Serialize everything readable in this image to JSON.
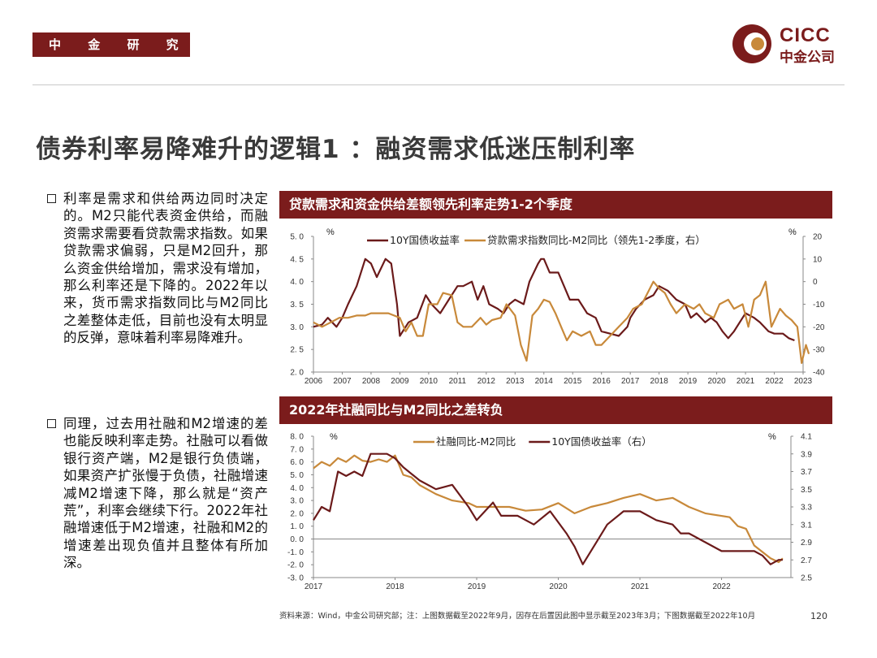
{
  "header": {
    "department": "中 金 研 究 部",
    "logo_en": "CICC",
    "logo_cn": "中金公司"
  },
  "title": "债券利率易降难升的逻辑1 ：融资需求低迷压制利率",
  "bullets": [
    "利率是需求和供给两边同时决定的。M2只能代表资金供给，而融资需求需要看贷款需求指数。如果贷款需求偏弱，只是M2回升，那么资金供给增加，需求没有增加，那么利率还是下降的。2022年以来，货币需求指数同比与M2同比之差整体走低，目前也没有太明显的反弹，意味着利率易降难升。",
    "同理，过去用社融和M2增速的差也能反映利率走势。社融可以看做银行资产端，M2是银行负债端，如果资产扩张慢于负债，社融增速减M2增速下降，那么就是“资产荒”，利率会继续下行。2022年社融增速低于M2增速，社融和M2的增速差出现负值并且整体有所加深。"
  ],
  "colors": {
    "brand": "#7b1c1c",
    "gold": "#c8893a",
    "grid": "#999999"
  },
  "panels": [
    {
      "heading": "贷款需求和资金供给差额领先利率走势1-2个季度"
    },
    {
      "heading": "2022年社融同比与M2同比之差转负"
    }
  ],
  "chart_data": [
    {
      "type": "line",
      "title": "贷款需求和资金供给差额领先利率走势1-2个季度",
      "left_unit": "%",
      "right_unit": "%",
      "left_axis": {
        "ylim": [
          2.0,
          5.0
        ],
        "ticks": [
          "2.0",
          "2.5",
          "3.0",
          "3.5",
          "4.0",
          "4.5",
          "5.0"
        ]
      },
      "right_axis": {
        "ylim": [
          -40,
          20
        ],
        "ticks": [
          "-40",
          "-30",
          "-20",
          "-10",
          "0",
          "10",
          "20"
        ]
      },
      "x_ticks": [
        "2006",
        "2007",
        "2008",
        "2009",
        "2010",
        "2011",
        "2012",
        "2013",
        "2014",
        "2015",
        "2016",
        "2017",
        "2018",
        "2019",
        "2020",
        "2021",
        "2022",
        "2023"
      ],
      "x_range": [
        2006,
        2023
      ],
      "series": [
        {
          "name": "10Y国债收益率",
          "axis": "left",
          "color": "#6b1a1a",
          "x": [
            2006.0,
            2006.3,
            2006.5,
            2006.8,
            2007.0,
            2007.2,
            2007.5,
            2007.8,
            2008.0,
            2008.2,
            2008.5,
            2008.7,
            2008.9,
            2009.0,
            2009.3,
            2009.6,
            2009.9,
            2010.1,
            2010.4,
            2010.7,
            2011.0,
            2011.2,
            2011.5,
            2011.7,
            2011.9,
            2012.1,
            2012.4,
            2012.6,
            2012.8,
            2013.0,
            2013.3,
            2013.5,
            2013.8,
            2013.9,
            2014.0,
            2014.2,
            2014.5,
            2014.7,
            2014.9,
            2015.2,
            2015.5,
            2015.8,
            2016.0,
            2016.3,
            2016.6,
            2016.9,
            2017.0,
            2017.2,
            2017.5,
            2017.8,
            2018.0,
            2018.3,
            2018.6,
            2018.9,
            2019.1,
            2019.3,
            2019.6,
            2019.8,
            2020.0,
            2020.2,
            2020.4,
            2020.6,
            2020.9,
            2021.0,
            2021.3,
            2021.5,
            2021.8,
            2022.0,
            2022.3,
            2022.5,
            2022.7
          ],
          "values": [
            3.0,
            3.05,
            3.2,
            3.0,
            3.2,
            3.5,
            3.9,
            4.5,
            4.4,
            4.1,
            4.5,
            4.4,
            3.5,
            2.8,
            3.1,
            3.2,
            3.7,
            3.5,
            3.3,
            3.6,
            3.9,
            3.9,
            4.0,
            3.6,
            3.9,
            3.5,
            3.4,
            3.3,
            3.5,
            3.6,
            3.5,
            4.0,
            4.4,
            4.5,
            4.5,
            4.2,
            4.2,
            3.9,
            3.6,
            3.6,
            3.3,
            3.2,
            2.9,
            2.85,
            2.8,
            3.0,
            3.2,
            3.4,
            3.6,
            3.7,
            3.9,
            3.8,
            3.6,
            3.5,
            3.2,
            3.3,
            3.1,
            3.2,
            3.1,
            2.9,
            2.75,
            2.9,
            3.2,
            3.3,
            3.2,
            3.1,
            2.9,
            2.85,
            2.85,
            2.75,
            2.7
          ]
        },
        {
          "name": "贷款需求指数同比-M2同比（领先1-2季度，右）",
          "axis": "right",
          "color": "#c8893a",
          "x": [
            2006.0,
            2006.3,
            2006.6,
            2006.9,
            2007.2,
            2007.5,
            2007.8,
            2008.0,
            2008.3,
            2008.6,
            2008.8,
            2009.0,
            2009.2,
            2009.4,
            2009.6,
            2009.8,
            2010.0,
            2010.3,
            2010.5,
            2010.8,
            2011.0,
            2011.2,
            2011.5,
            2011.8,
            2012.0,
            2012.2,
            2012.5,
            2012.7,
            2013.0,
            2013.2,
            2013.4,
            2013.6,
            2013.8,
            2014.0,
            2014.2,
            2014.4,
            2014.6,
            2014.8,
            2015.0,
            2015.3,
            2015.6,
            2015.8,
            2016.0,
            2016.3,
            2016.6,
            2016.9,
            2017.1,
            2017.4,
            2017.6,
            2017.8,
            2018.0,
            2018.2,
            2018.4,
            2018.6,
            2018.9,
            2019.2,
            2019.4,
            2019.6,
            2019.9,
            2020.1,
            2020.4,
            2020.6,
            2020.9,
            2021.1,
            2021.3,
            2021.5,
            2021.7,
            2021.9,
            2022.2,
            2022.4,
            2022.6,
            2022.8,
            2022.95,
            2023.1,
            2023.2
          ],
          "values": [
            -18,
            -20,
            -18,
            -16,
            -16,
            -15,
            -15,
            -14,
            -14,
            -14,
            -15,
            -16,
            -22,
            -18,
            -24,
            -24,
            -10,
            -10,
            -5,
            -6,
            -18,
            -20,
            -20,
            -16,
            -19,
            -17,
            -16,
            -10,
            -15,
            -28,
            -35,
            -15,
            -12,
            -8,
            -9,
            -14,
            -20,
            -26,
            -22,
            -24,
            -22,
            -28,
            -28,
            -24,
            -20,
            -16,
            -12,
            -10,
            -5,
            0,
            -3,
            -5,
            -10,
            -14,
            -10,
            -12,
            -10,
            -14,
            -16,
            -10,
            -8,
            -12,
            -10,
            -20,
            -8,
            -6,
            0,
            -20,
            -12,
            -15,
            -17,
            -20,
            -36,
            -28,
            -32
          ]
        }
      ]
    },
    {
      "type": "line",
      "title": "2022年社融同比与M2同比之差转负",
      "left_unit": "%",
      "right_unit": "%",
      "left_axis": {
        "ylim": [
          -3.0,
          8.0
        ],
        "ticks": [
          "-3.0",
          "-2.0",
          "-1.0",
          "0.0",
          "1.0",
          "2.0",
          "3.0",
          "4.0",
          "5.0",
          "6.0",
          "7.0",
          "8.0"
        ]
      },
      "right_axis": {
        "ylim": [
          2.5,
          4.1
        ],
        "ticks": [
          "2.5",
          "2.7",
          "2.9",
          "3.1",
          "3.3",
          "3.5",
          "3.7",
          "3.9",
          "4.1"
        ]
      },
      "x_ticks": [
        "2017",
        "2018",
        "2019",
        "2020",
        "2021",
        "2022"
      ],
      "x_range": [
        2017,
        2022.85
      ],
      "series": [
        {
          "name": "社融同比-M2同比",
          "axis": "left",
          "color": "#c8893a",
          "x": [
            2017.0,
            2017.1,
            2017.2,
            2017.3,
            2017.4,
            2017.5,
            2017.6,
            2017.7,
            2017.8,
            2017.9,
            2018.0,
            2018.1,
            2018.2,
            2018.3,
            2018.5,
            2018.7,
            2018.9,
            2019.0,
            2019.2,
            2019.4,
            2019.6,
            2019.8,
            2020.0,
            2020.2,
            2020.4,
            2020.6,
            2020.8,
            2021.0,
            2021.2,
            2021.4,
            2021.6,
            2021.8,
            2022.0,
            2022.1,
            2022.2,
            2022.3,
            2022.4,
            2022.5,
            2022.6,
            2022.7,
            2022.75
          ],
          "values": [
            5.5,
            6.0,
            5.7,
            6.3,
            6.0,
            6.5,
            6.1,
            6.0,
            6.2,
            6.0,
            6.5,
            5.0,
            4.8,
            4.2,
            3.5,
            3.0,
            2.8,
            2.5,
            2.5,
            2.5,
            2.2,
            2.3,
            2.8,
            2.0,
            2.5,
            2.8,
            3.2,
            3.5,
            3.0,
            3.2,
            2.5,
            2.0,
            1.8,
            1.7,
            1.0,
            0.8,
            -0.5,
            -1.0,
            -1.5,
            -1.8,
            -1.5
          ]
        },
        {
          "name": "10Y国债收益率（右）",
          "axis": "right",
          "color": "#6b1a1a",
          "x": [
            2017.0,
            2017.1,
            2017.2,
            2017.3,
            2017.4,
            2017.5,
            2017.6,
            2017.7,
            2017.8,
            2017.9,
            2018.0,
            2018.1,
            2018.3,
            2018.5,
            2018.7,
            2018.9,
            2019.0,
            2019.2,
            2019.3,
            2019.5,
            2019.7,
            2019.9,
            2020.1,
            2020.2,
            2020.3,
            2020.5,
            2020.6,
            2020.8,
            2021.0,
            2021.2,
            2021.4,
            2021.5,
            2021.6,
            2021.8,
            2022.0,
            2022.2,
            2022.4,
            2022.5,
            2022.6,
            2022.7,
            2022.75
          ],
          "values": [
            3.15,
            3.3,
            3.25,
            3.7,
            3.65,
            3.7,
            3.65,
            3.9,
            3.9,
            3.9,
            3.85,
            3.75,
            3.6,
            3.5,
            3.55,
            3.3,
            3.15,
            3.35,
            3.2,
            3.2,
            3.1,
            3.25,
            3.0,
            2.85,
            2.65,
            2.95,
            3.1,
            3.25,
            3.25,
            3.15,
            3.1,
            3.0,
            3.0,
            2.9,
            2.8,
            2.8,
            2.8,
            2.75,
            2.65,
            2.7,
            2.7
          ]
        }
      ]
    }
  ],
  "footnote": "资料来源：Wind，中金公司研究部；注：上图数据截至2022年9月，因存在后置因此图中显示截至2023年3月；下图数据截至2022年10月",
  "page_number": "120"
}
